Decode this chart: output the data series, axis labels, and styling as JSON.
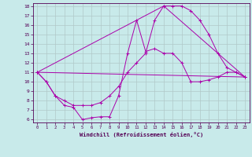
{
  "xlabel": "Windchill (Refroidissement éolien,°C)",
  "ylabel": "",
  "bg_color": "#c8eaea",
  "line_color": "#aa00aa",
  "grid_color": "#b0c8c8",
  "xmin": 0,
  "xmax": 23,
  "ymin": 6,
  "ymax": 18,
  "xticks": [
    0,
    1,
    2,
    3,
    4,
    5,
    6,
    7,
    8,
    9,
    10,
    11,
    12,
    13,
    14,
    15,
    16,
    17,
    18,
    19,
    20,
    21,
    22,
    23
  ],
  "yticks": [
    6,
    7,
    8,
    9,
    10,
    11,
    12,
    13,
    14,
    15,
    16,
    17,
    18
  ],
  "series": [
    {
      "x": [
        0,
        1,
        2,
        3,
        4,
        5,
        6,
        7,
        8,
        9,
        10,
        11,
        12,
        13,
        14,
        15,
        16,
        17,
        18,
        19,
        20,
        21,
        22,
        23
      ],
      "y": [
        11,
        10,
        8.5,
        7.5,
        7.3,
        6.0,
        6.2,
        6.3,
        6.3,
        8.5,
        13.0,
        16.5,
        13.2,
        13.5,
        13.0,
        13.0,
        12.0,
        10.0,
        10.0,
        10.2,
        10.5,
        11.0,
        11.0,
        10.5
      ]
    },
    {
      "x": [
        0,
        1,
        2,
        3,
        4,
        5,
        6,
        7,
        8,
        9,
        10,
        11,
        12,
        13,
        14,
        15,
        16,
        17,
        18,
        19,
        20,
        21,
        22,
        23
      ],
      "y": [
        11,
        10,
        8.5,
        8.0,
        7.5,
        7.5,
        7.5,
        7.8,
        8.5,
        9.5,
        11.0,
        12.0,
        13.0,
        16.5,
        18.0,
        18.0,
        18.0,
        17.5,
        16.5,
        15.0,
        13.0,
        11.5,
        11.0,
        10.5
      ]
    },
    {
      "x": [
        0,
        23
      ],
      "y": [
        11,
        10.5
      ]
    },
    {
      "x": [
        0,
        14,
        23
      ],
      "y": [
        11,
        18,
        10.5
      ]
    }
  ]
}
